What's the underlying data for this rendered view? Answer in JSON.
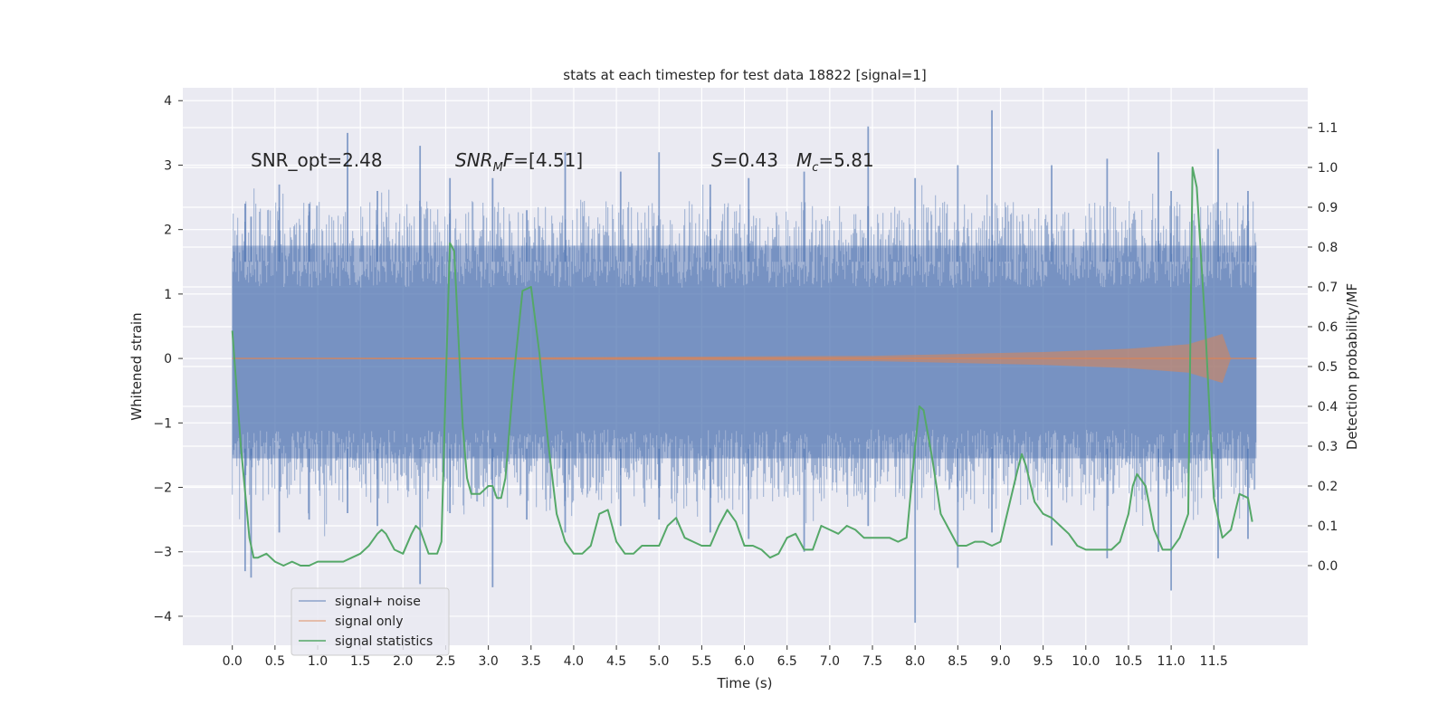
{
  "chart_data": {
    "type": "line",
    "title": "stats at each timestep for test data 18822 [signal=1]",
    "xlabel": "Time (s)",
    "ylabel": "Whitened strain",
    "ylabel_right": "Detection probability/MF",
    "xlim": [
      -0.58,
      12.6
    ],
    "ylim": [
      -4.45,
      4.2
    ],
    "ylim_right": [
      -0.2,
      1.2
    ],
    "x_ticks": [
      "0.0",
      "0.5",
      "1.0",
      "1.5",
      "2.0",
      "2.5",
      "3.0",
      "3.5",
      "4.0",
      "4.5",
      "5.0",
      "5.5",
      "6.0",
      "6.5",
      "7.0",
      "7.5",
      "8.0",
      "8.5",
      "9.0",
      "9.5",
      "10.0",
      "10.5",
      "11.0",
      "11.5"
    ],
    "y_ticks": [
      "4",
      "3",
      "2",
      "1",
      "0",
      "−1",
      "−2",
      "−3",
      "−4"
    ],
    "y_ticks_right": [
      "1.1",
      "1.0",
      "0.9",
      "0.8",
      "0.7",
      "0.6",
      "0.5",
      "0.4",
      "0.3",
      "0.2",
      "0.1",
      "0.0"
    ],
    "annotations": [
      {
        "parts": [
          {
            "text": "SNR_opt=2.48"
          }
        ]
      },
      {
        "parts": [
          {
            "text": "SNR",
            "italic": true
          },
          {
            "text": "M",
            "italic": true,
            "sub": true
          },
          {
            "text": "F",
            "italic": true
          },
          {
            "text": "=[4.51]"
          }
        ]
      },
      {
        "parts": [
          {
            "text": "S",
            "italic": true
          },
          {
            "text": "=0.43"
          }
        ]
      },
      {
        "parts": [
          {
            "text": "M",
            "italic": true
          },
          {
            "text": "c",
            "italic": true,
            "sub": true
          },
          {
            "text": "=5.81"
          }
        ]
      }
    ],
    "legend": {
      "placement": "lower-left",
      "entries": [
        "signal+ noise",
        "signal only",
        "signal statistics"
      ]
    },
    "series": [
      {
        "name": "signal+ noise",
        "axis": "left",
        "color": "#4c72b0",
        "opacity": 0.5,
        "x_range": [
          0.0,
          12.0
        ],
        "envelope": [
          {
            "x": 0.15,
            "top": 2.4,
            "bottom": -3.3
          },
          {
            "x": 0.22,
            "top": 2.2,
            "bottom": -3.4
          },
          {
            "x": 0.55,
            "top": 2.7,
            "bottom": -2.7
          },
          {
            "x": 0.9,
            "top": 2.4,
            "bottom": -2.5
          },
          {
            "x": 1.35,
            "top": 3.5,
            "bottom": -2.4
          },
          {
            "x": 1.7,
            "top": 2.6,
            "bottom": -2.6
          },
          {
            "x": 2.2,
            "top": 3.3,
            "bottom": -3.5
          },
          {
            "x": 2.55,
            "top": 2.8,
            "bottom": -2.4
          },
          {
            "x": 3.05,
            "top": 2.8,
            "bottom": -3.55
          },
          {
            "x": 3.45,
            "top": 2.3,
            "bottom": -2.5
          },
          {
            "x": 3.9,
            "top": 3.2,
            "bottom": -2.7
          },
          {
            "x": 4.55,
            "top": 2.9,
            "bottom": -2.6
          },
          {
            "x": 5.0,
            "top": 3.2,
            "bottom": -2.5
          },
          {
            "x": 5.6,
            "top": 2.7,
            "bottom": -2.7
          },
          {
            "x": 6.05,
            "top": 2.8,
            "bottom": -2.8
          },
          {
            "x": 6.7,
            "top": 2.9,
            "bottom": -3.0
          },
          {
            "x": 7.45,
            "top": 3.6,
            "bottom": -2.6
          },
          {
            "x": 8.0,
            "top": 2.8,
            "bottom": -4.1
          },
          {
            "x": 8.5,
            "top": 3.0,
            "bottom": -3.25
          },
          {
            "x": 8.9,
            "top": 3.85,
            "bottom": -2.7
          },
          {
            "x": 9.6,
            "top": 3.0,
            "bottom": -2.9
          },
          {
            "x": 10.25,
            "top": 3.1,
            "bottom": -3.1
          },
          {
            "x": 10.85,
            "top": 3.2,
            "bottom": -3.0
          },
          {
            "x": 11.0,
            "top": 2.6,
            "bottom": -3.6
          },
          {
            "x": 11.55,
            "top": 3.25,
            "bottom": -3.1
          },
          {
            "x": 11.9,
            "top": 2.6,
            "bottom": -2.8
          }
        ]
      },
      {
        "name": "signal only",
        "axis": "left",
        "color": "#dd8452",
        "x_range": [
          0.0,
          12.0
        ],
        "chirp": [
          {
            "x": 0.0,
            "amp": 0.0
          },
          {
            "x": 7.5,
            "amp": 0.04
          },
          {
            "x": 9.5,
            "amp": 0.1
          },
          {
            "x": 10.5,
            "amp": 0.15
          },
          {
            "x": 11.2,
            "amp": 0.22
          },
          {
            "x": 11.6,
            "amp": 0.38
          },
          {
            "x": 11.7,
            "amp": 0.0
          }
        ]
      },
      {
        "name": "signal statistics",
        "axis": "right",
        "color": "#55a868",
        "x": [
          0.0,
          0.1,
          0.2,
          0.25,
          0.3,
          0.4,
          0.5,
          0.6,
          0.7,
          0.8,
          0.9,
          1.0,
          1.1,
          1.2,
          1.3,
          1.4,
          1.5,
          1.6,
          1.7,
          1.75,
          1.8,
          1.9,
          2.0,
          2.1,
          2.15,
          2.2,
          2.3,
          2.4,
          2.45,
          2.5,
          2.55,
          2.6,
          2.7,
          2.75,
          2.8,
          2.9,
          3.0,
          3.05,
          3.1,
          3.15,
          3.2,
          3.3,
          3.4,
          3.5,
          3.6,
          3.7,
          3.8,
          3.9,
          4.0,
          4.1,
          4.2,
          4.3,
          4.4,
          4.5,
          4.6,
          4.7,
          4.8,
          4.9,
          5.0,
          5.1,
          5.2,
          5.3,
          5.4,
          5.5,
          5.6,
          5.7,
          5.8,
          5.9,
          6.0,
          6.1,
          6.2,
          6.3,
          6.4,
          6.5,
          6.6,
          6.7,
          6.8,
          6.9,
          7.0,
          7.1,
          7.2,
          7.3,
          7.4,
          7.5,
          7.6,
          7.7,
          7.8,
          7.9,
          8.0,
          8.05,
          8.1,
          8.2,
          8.3,
          8.4,
          8.5,
          8.6,
          8.7,
          8.8,
          8.9,
          9.0,
          9.1,
          9.2,
          9.25,
          9.3,
          9.4,
          9.5,
          9.6,
          9.7,
          9.8,
          9.9,
          10.0,
          10.1,
          10.2,
          10.3,
          10.4,
          10.5,
          10.55,
          10.6,
          10.7,
          10.8,
          10.9,
          11.0,
          11.1,
          11.2,
          11.25,
          11.3,
          11.4,
          11.5,
          11.6,
          11.7,
          11.8,
          11.9,
          11.95
        ],
        "y": [
          0.59,
          0.3,
          0.07,
          0.02,
          0.02,
          0.03,
          0.01,
          0.0,
          0.01,
          0.0,
          0.0,
          0.01,
          0.01,
          0.01,
          0.01,
          0.02,
          0.03,
          0.05,
          0.08,
          0.09,
          0.08,
          0.04,
          0.03,
          0.08,
          0.1,
          0.09,
          0.03,
          0.03,
          0.06,
          0.45,
          0.81,
          0.79,
          0.35,
          0.22,
          0.18,
          0.18,
          0.2,
          0.2,
          0.17,
          0.17,
          0.22,
          0.48,
          0.69,
          0.7,
          0.53,
          0.31,
          0.13,
          0.06,
          0.03,
          0.03,
          0.05,
          0.13,
          0.14,
          0.06,
          0.03,
          0.03,
          0.05,
          0.05,
          0.05,
          0.1,
          0.12,
          0.07,
          0.06,
          0.05,
          0.05,
          0.1,
          0.14,
          0.11,
          0.05,
          0.05,
          0.04,
          0.02,
          0.03,
          0.07,
          0.08,
          0.04,
          0.04,
          0.1,
          0.09,
          0.08,
          0.1,
          0.09,
          0.07,
          0.07,
          0.07,
          0.07,
          0.06,
          0.07,
          0.3,
          0.4,
          0.39,
          0.27,
          0.13,
          0.09,
          0.05,
          0.05,
          0.06,
          0.06,
          0.05,
          0.06,
          0.15,
          0.24,
          0.28,
          0.25,
          0.16,
          0.13,
          0.12,
          0.1,
          0.08,
          0.05,
          0.04,
          0.04,
          0.04,
          0.04,
          0.06,
          0.13,
          0.2,
          0.23,
          0.2,
          0.09,
          0.04,
          0.04,
          0.07,
          0.13,
          1.0,
          0.95,
          0.6,
          0.17,
          0.07,
          0.09,
          0.18,
          0.17,
          0.11
        ]
      }
    ]
  }
}
